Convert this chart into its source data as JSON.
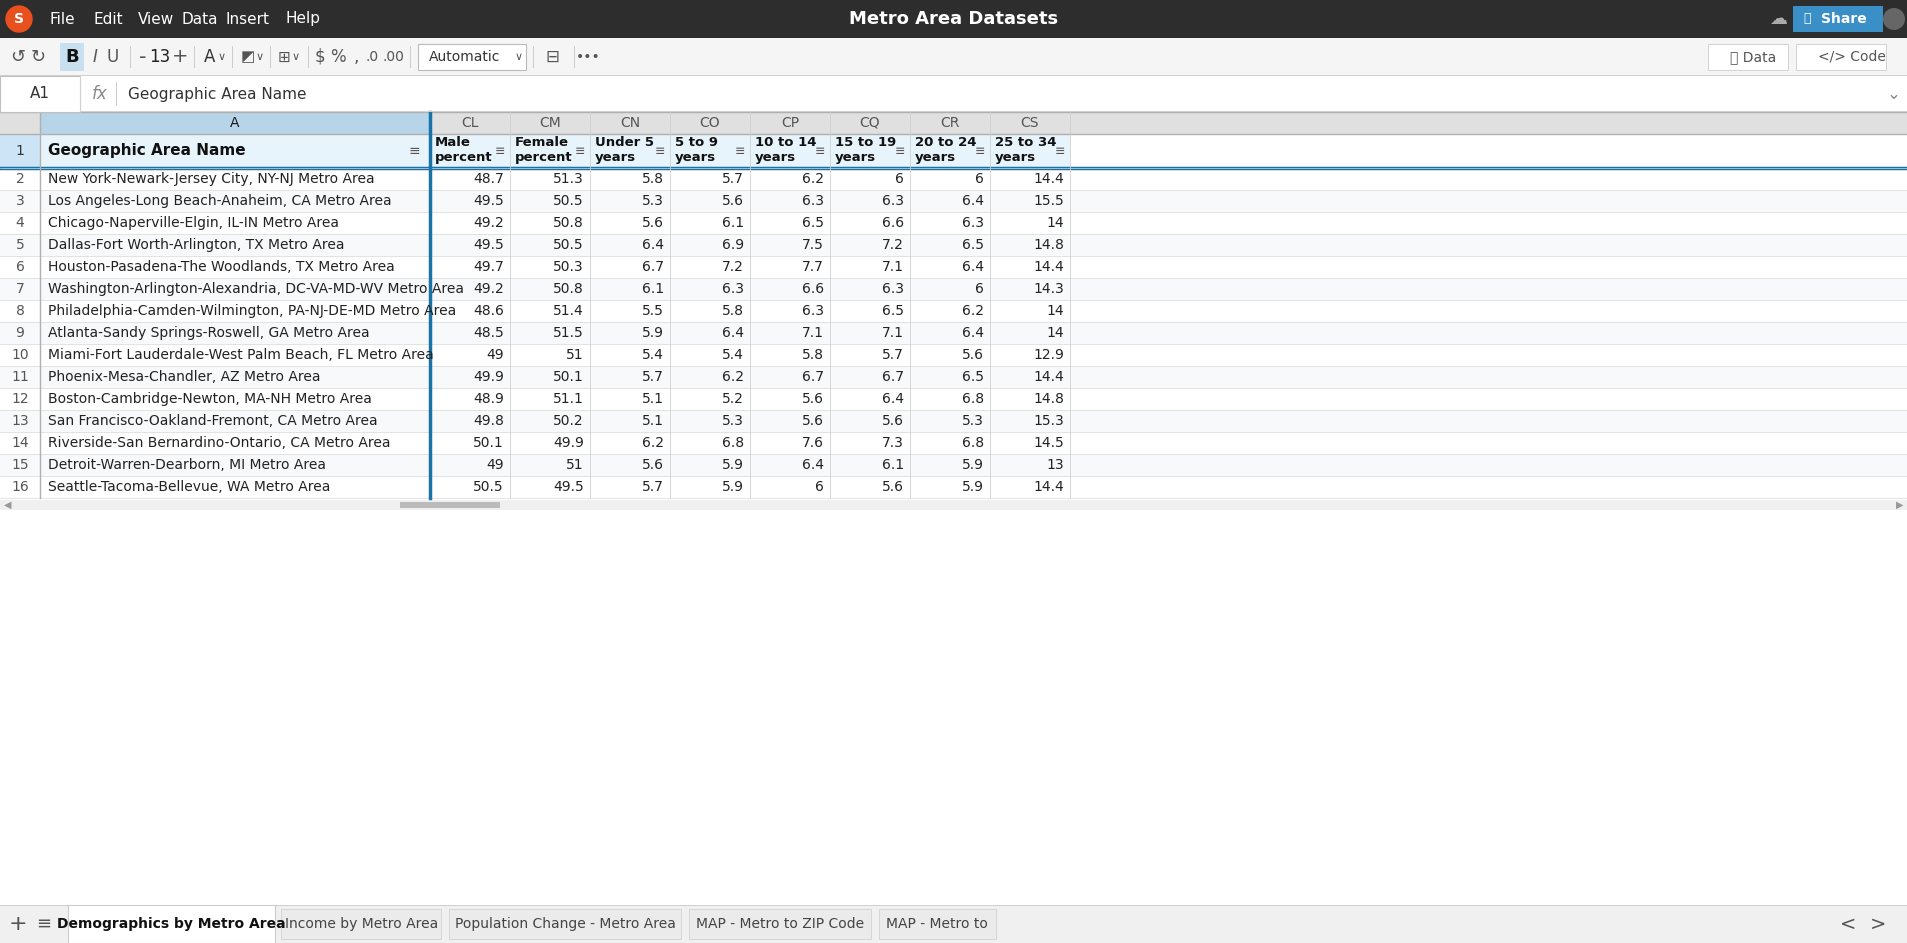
{
  "title": "Metro Area Datasets",
  "formula_bar_text": "Geographic Area Name",
  "cell_ref": "A1",
  "col_headers_labels": [
    "",
    "A",
    "CL",
    "CM",
    "CN",
    "CO",
    "CP",
    "CQ",
    "CR",
    "CS"
  ],
  "header_row": [
    "Geographic Area Name",
    "Male\npercent",
    "Female\npercent",
    "Under 5\nyears",
    "5 to 9\nyears",
    "10 to 14\nyears",
    "15 to 19\nyears",
    "20 to 24\nyears",
    "25 to 34\nyears"
  ],
  "data_rows": [
    [
      "New York-Newark-Jersey City, NY-NJ Metro Area",
      48.7,
      51.3,
      5.8,
      5.7,
      6.2,
      6.0,
      6.0,
      14.4
    ],
    [
      "Los Angeles-Long Beach-Anaheim, CA Metro Area",
      49.5,
      50.5,
      5.3,
      5.6,
      6.3,
      6.3,
      6.4,
      15.5
    ],
    [
      "Chicago-Naperville-Elgin, IL-IN Metro Area",
      49.2,
      50.8,
      5.6,
      6.1,
      6.5,
      6.6,
      6.3,
      14.0
    ],
    [
      "Dallas-Fort Worth-Arlington, TX Metro Area",
      49.5,
      50.5,
      6.4,
      6.9,
      7.5,
      7.2,
      6.5,
      14.8
    ],
    [
      "Houston-Pasadena-The Woodlands, TX Metro Area",
      49.7,
      50.3,
      6.7,
      7.2,
      7.7,
      7.1,
      6.4,
      14.4
    ],
    [
      "Washington-Arlington-Alexandria, DC-VA-MD-WV Metro Area",
      49.2,
      50.8,
      6.1,
      6.3,
      6.6,
      6.3,
      6.0,
      14.3
    ],
    [
      "Philadelphia-Camden-Wilmington, PA-NJ-DE-MD Metro Area",
      48.6,
      51.4,
      5.5,
      5.8,
      6.3,
      6.5,
      6.2,
      14.0
    ],
    [
      "Atlanta-Sandy Springs-Roswell, GA Metro Area",
      48.5,
      51.5,
      5.9,
      6.4,
      7.1,
      7.1,
      6.4,
      14.0
    ],
    [
      "Miami-Fort Lauderdale-West Palm Beach, FL Metro Area",
      49.0,
      51.0,
      5.4,
      5.4,
      5.8,
      5.7,
      5.6,
      12.9
    ],
    [
      "Phoenix-Mesa-Chandler, AZ Metro Area",
      49.9,
      50.1,
      5.7,
      6.2,
      6.7,
      6.7,
      6.5,
      14.4
    ],
    [
      "Boston-Cambridge-Newton, MA-NH Metro Area",
      48.9,
      51.1,
      5.1,
      5.2,
      5.6,
      6.4,
      6.8,
      14.8
    ],
    [
      "San Francisco-Oakland-Fremont, CA Metro Area",
      49.8,
      50.2,
      5.1,
      5.3,
      5.6,
      5.6,
      5.3,
      15.3
    ],
    [
      "Riverside-San Bernardino-Ontario, CA Metro Area",
      50.1,
      49.9,
      6.2,
      6.8,
      7.6,
      7.3,
      6.8,
      14.5
    ],
    [
      "Detroit-Warren-Dearborn, MI Metro Area",
      49.0,
      51.0,
      5.6,
      5.9,
      6.4,
      6.1,
      5.9,
      13.0
    ],
    [
      "Seattle-Tacoma-Bellevue, WA Metro Area",
      50.5,
      49.5,
      5.7,
      5.9,
      6.0,
      5.6,
      5.9,
      14.4
    ]
  ],
  "sheet_tabs": [
    "Demographics by Metro Area",
    "Income by Metro Area",
    "Population Change - Metro Area",
    "MAP - Metro to ZIP Code",
    "MAP - Metro to"
  ],
  "topbar_bg": "#2d2d2d",
  "toolbar_bg": "#f5f5f5",
  "formula_bg": "#ffffff",
  "col_hdr_bg": "#e0e0e0",
  "col_hdr_selected_bg": "#b8d4e8",
  "row_hdr_selected_bg": "#cce4f5",
  "cell_selected_bg": "#e8f4fc",
  "row_bg_even": "#ffffff",
  "row_bg_odd": "#f8f9fa",
  "grid_color": "#d0d0d0",
  "selected_border": "#1a73a7",
  "tab_active_bg": "#ffffff",
  "tab_inactive_bg": "#ebebeb",
  "tab_bar_bg": "#f0f0f0"
}
